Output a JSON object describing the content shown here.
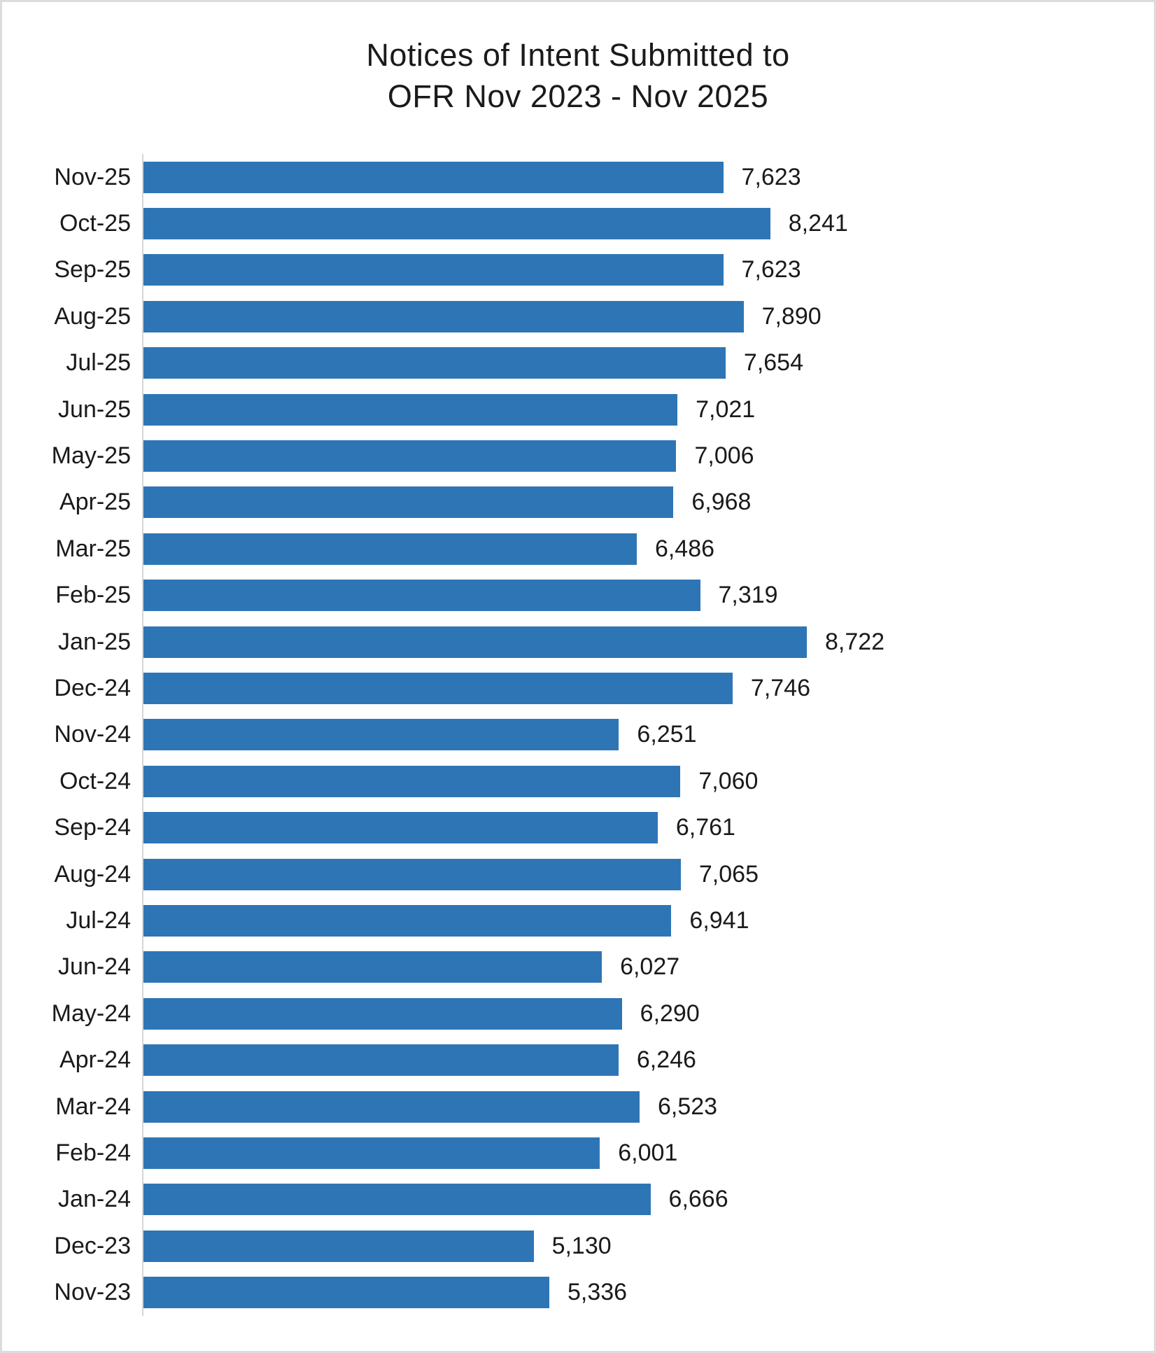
{
  "chart_data": {
    "type": "bar",
    "orientation": "horizontal",
    "title": "Notices of Intent Submitted to OFR Nov 2023 - Nov 2025",
    "title_line1": "Notices of Intent Submitted to",
    "title_line2": "OFR Nov 2023 - Nov 2025",
    "categories": [
      "Nov-25",
      "Oct-25",
      "Sep-25",
      "Aug-25",
      "Jul-25",
      "Jun-25",
      "May-25",
      "Apr-25",
      "Mar-25",
      "Feb-25",
      "Jan-25",
      "Dec-24",
      "Nov-24",
      "Oct-24",
      "Sep-24",
      "Aug-24",
      "Jul-24",
      "Jun-24",
      "May-24",
      "Apr-24",
      "Mar-24",
      "Feb-24",
      "Jan-24",
      "Dec-23",
      "Nov-23"
    ],
    "values": [
      7623,
      8241,
      7623,
      7890,
      7654,
      7021,
      7006,
      6968,
      6486,
      7319,
      8722,
      7746,
      6251,
      7060,
      6761,
      7065,
      6941,
      6027,
      6290,
      6246,
      6523,
      6001,
      6666,
      5130,
      5336
    ],
    "value_labels": [
      "7,623",
      "8,241",
      "7,623",
      "7,890",
      "7,654",
      "7,021",
      "7,006",
      "6,968",
      "6,486",
      "7,319",
      "8,722",
      "7,746",
      "6,251",
      "7,060",
      "6,761",
      "7,065",
      "6,941",
      "6,027",
      "6,290",
      "6,246",
      "6,523",
      "6,001",
      "6,666",
      "5,130",
      "5,336"
    ],
    "xlabel": "",
    "ylabel": "",
    "xlim": [
      0,
      8722
    ],
    "grid": false,
    "legend": false,
    "data_labels": true,
    "bar_color": "#2e75b6",
    "axis_line_color": "#d6d6d6",
    "text_color": "#1a1a1a"
  }
}
